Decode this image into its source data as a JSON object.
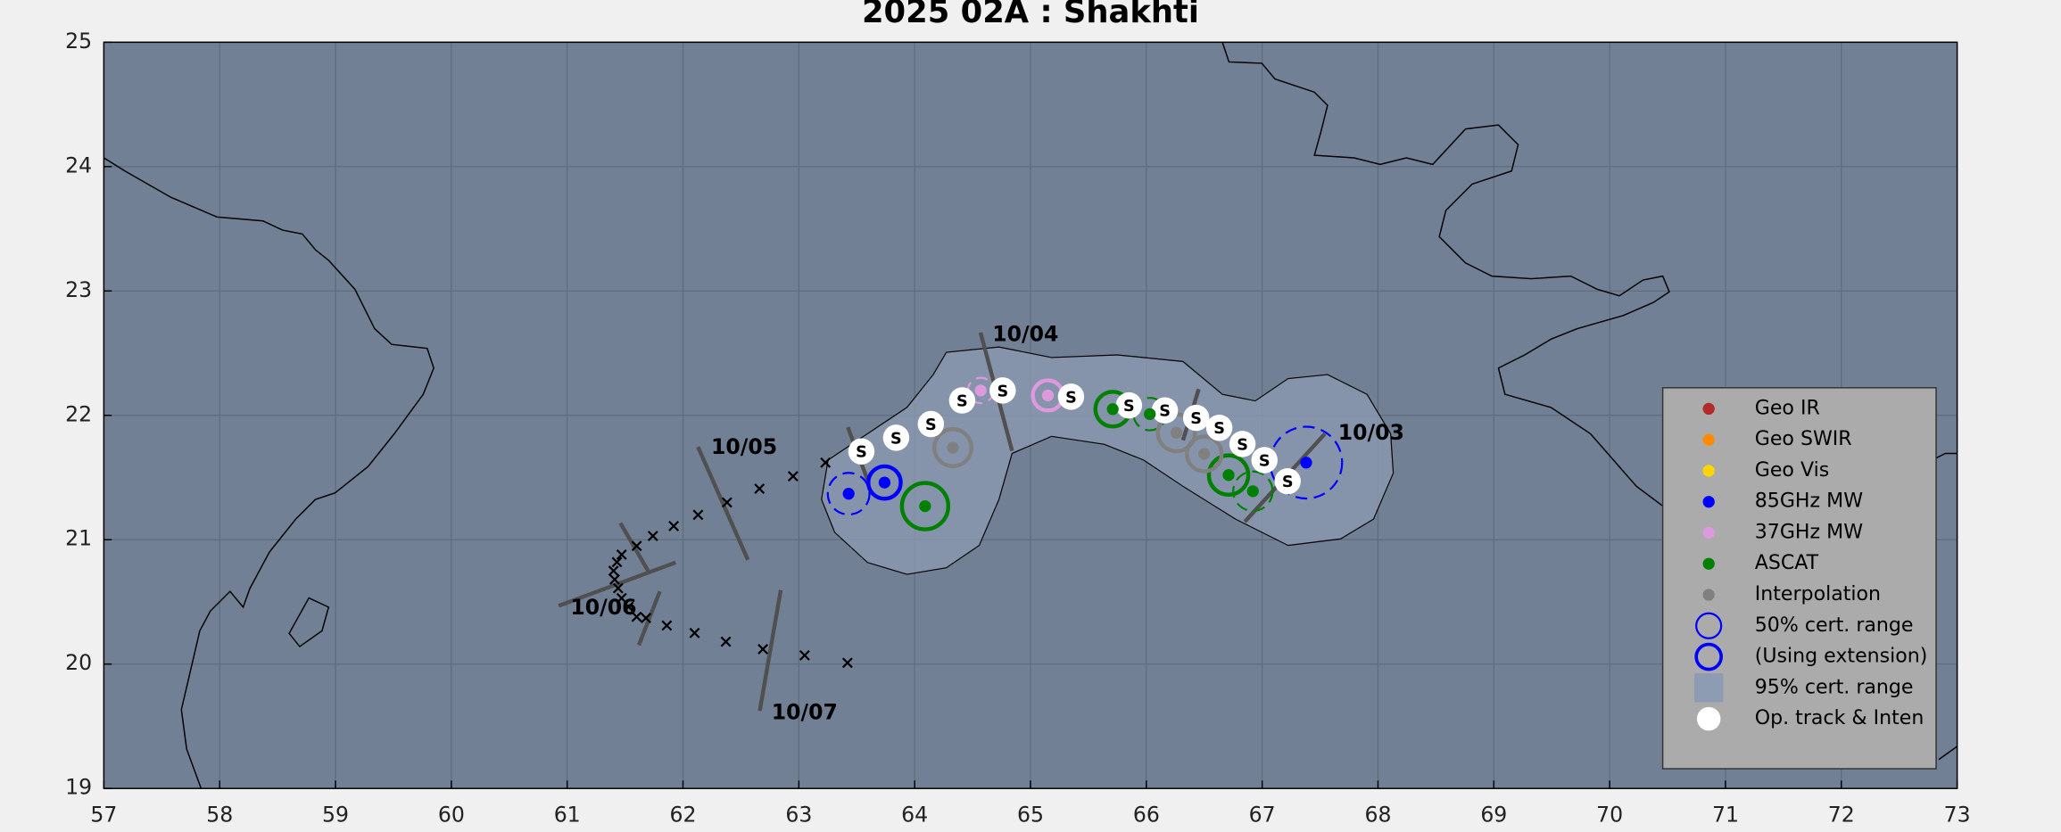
{
  "chart_data": {
    "type": "track",
    "title": "2025  02A :  Shakhti",
    "xlim": [
      57,
      73
    ],
    "ylim": [
      19,
      25
    ],
    "xticks": [
      57,
      58,
      59,
      60,
      61,
      62,
      63,
      64,
      65,
      66,
      67,
      68,
      69,
      70,
      71,
      72,
      73
    ],
    "yticks": [
      19,
      20,
      21,
      22,
      23,
      24,
      25
    ],
    "grid": true,
    "date_labels": [
      "10/03",
      "10/04",
      "10/05",
      "10/06",
      "10/07"
    ],
    "track": {
      "name": "Op. track & Inten",
      "color": "#ffffff",
      "lon": [
        63.54,
        63.84,
        64.14,
        64.41,
        64.76,
        65.35,
        65.85,
        66.16,
        66.43,
        66.63,
        66.83,
        67.02,
        67.22
      ],
      "lat": [
        21.71,
        21.82,
        21.93,
        22.12,
        22.2,
        22.15,
        22.08,
        22.04,
        21.98,
        21.9,
        21.77,
        21.64,
        21.47
      ],
      "intensity": [
        "S",
        "S",
        "S",
        "S",
        "S",
        "S",
        "S",
        "S",
        "S",
        "S",
        "S",
        "S",
        "S"
      ]
    },
    "forecast": {
      "lon": [
        63.23,
        62.95,
        62.66,
        62.38,
        62.13,
        61.92,
        61.74,
        61.6,
        61.47,
        61.43,
        61.4,
        61.41,
        61.44,
        61.47,
        61.53,
        61.6,
        61.68,
        61.86,
        62.1,
        62.37,
        62.69,
        63.05,
        63.42
      ],
      "lat": [
        21.62,
        21.51,
        21.41,
        21.3,
        21.2,
        21.11,
        21.03,
        20.95,
        20.88,
        20.82,
        20.75,
        20.68,
        20.61,
        20.53,
        20.46,
        20.38,
        20.37,
        20.31,
        20.25,
        20.18,
        20.12,
        20.07,
        20.01
      ]
    },
    "series": [
      {
        "name": "Geo IR",
        "color": "#b22a2a",
        "lon": [],
        "lat": [],
        "radius": [],
        "extension": []
      },
      {
        "name": "Geo SWIR",
        "color": "#ff8c00",
        "lon": [],
        "lat": [],
        "radius": [],
        "extension": []
      },
      {
        "name": "Geo Vis",
        "color": "#ffd700",
        "lon": [],
        "lat": [],
        "radius": [],
        "extension": []
      },
      {
        "name": "85GHz MW",
        "color": "#0000ff",
        "lon": [
          63.43,
          63.74,
          67.38
        ],
        "lat": [
          21.37,
          21.46,
          21.62
        ],
        "radius": [
          0.18,
          0.14,
          0.31
        ],
        "extension": [
          true,
          false,
          true
        ]
      },
      {
        "name": "37GHz MW",
        "color": "#dd99dd",
        "lon": [
          64.57,
          65.15
        ],
        "lat": [
          22.2,
          22.16
        ],
        "radius": [
          0.11,
          0.13
        ],
        "extension": [
          true,
          false
        ]
      },
      {
        "name": "ASCAT",
        "color": "#008000",
        "lon": [
          64.09,
          65.71,
          66.03,
          66.71,
          66.92
        ],
        "lat": [
          21.27,
          22.05,
          22.01,
          21.52,
          21.39
        ],
        "radius": [
          0.2,
          0.15,
          0.14,
          0.17,
          0.17
        ],
        "extension": [
          false,
          false,
          true,
          false,
          true
        ]
      },
      {
        "name": "Interpolation",
        "color": "#808080",
        "lon": [
          64.33,
          66.26,
          66.5
        ],
        "lat": [
          21.74,
          21.86,
          21.69
        ],
        "radius": [
          0.16,
          0.16,
          0.15
        ],
        "extension": [
          false,
          false,
          false
        ]
      }
    ],
    "range_legend": [
      {
        "name": "50% cert. range",
        "color": "#0000ff"
      },
      {
        "name": "(Using extension)",
        "color": "#0000ff"
      }
    ],
    "region": {
      "name": "95% cert. range",
      "color": "#8d9bb3"
    }
  }
}
